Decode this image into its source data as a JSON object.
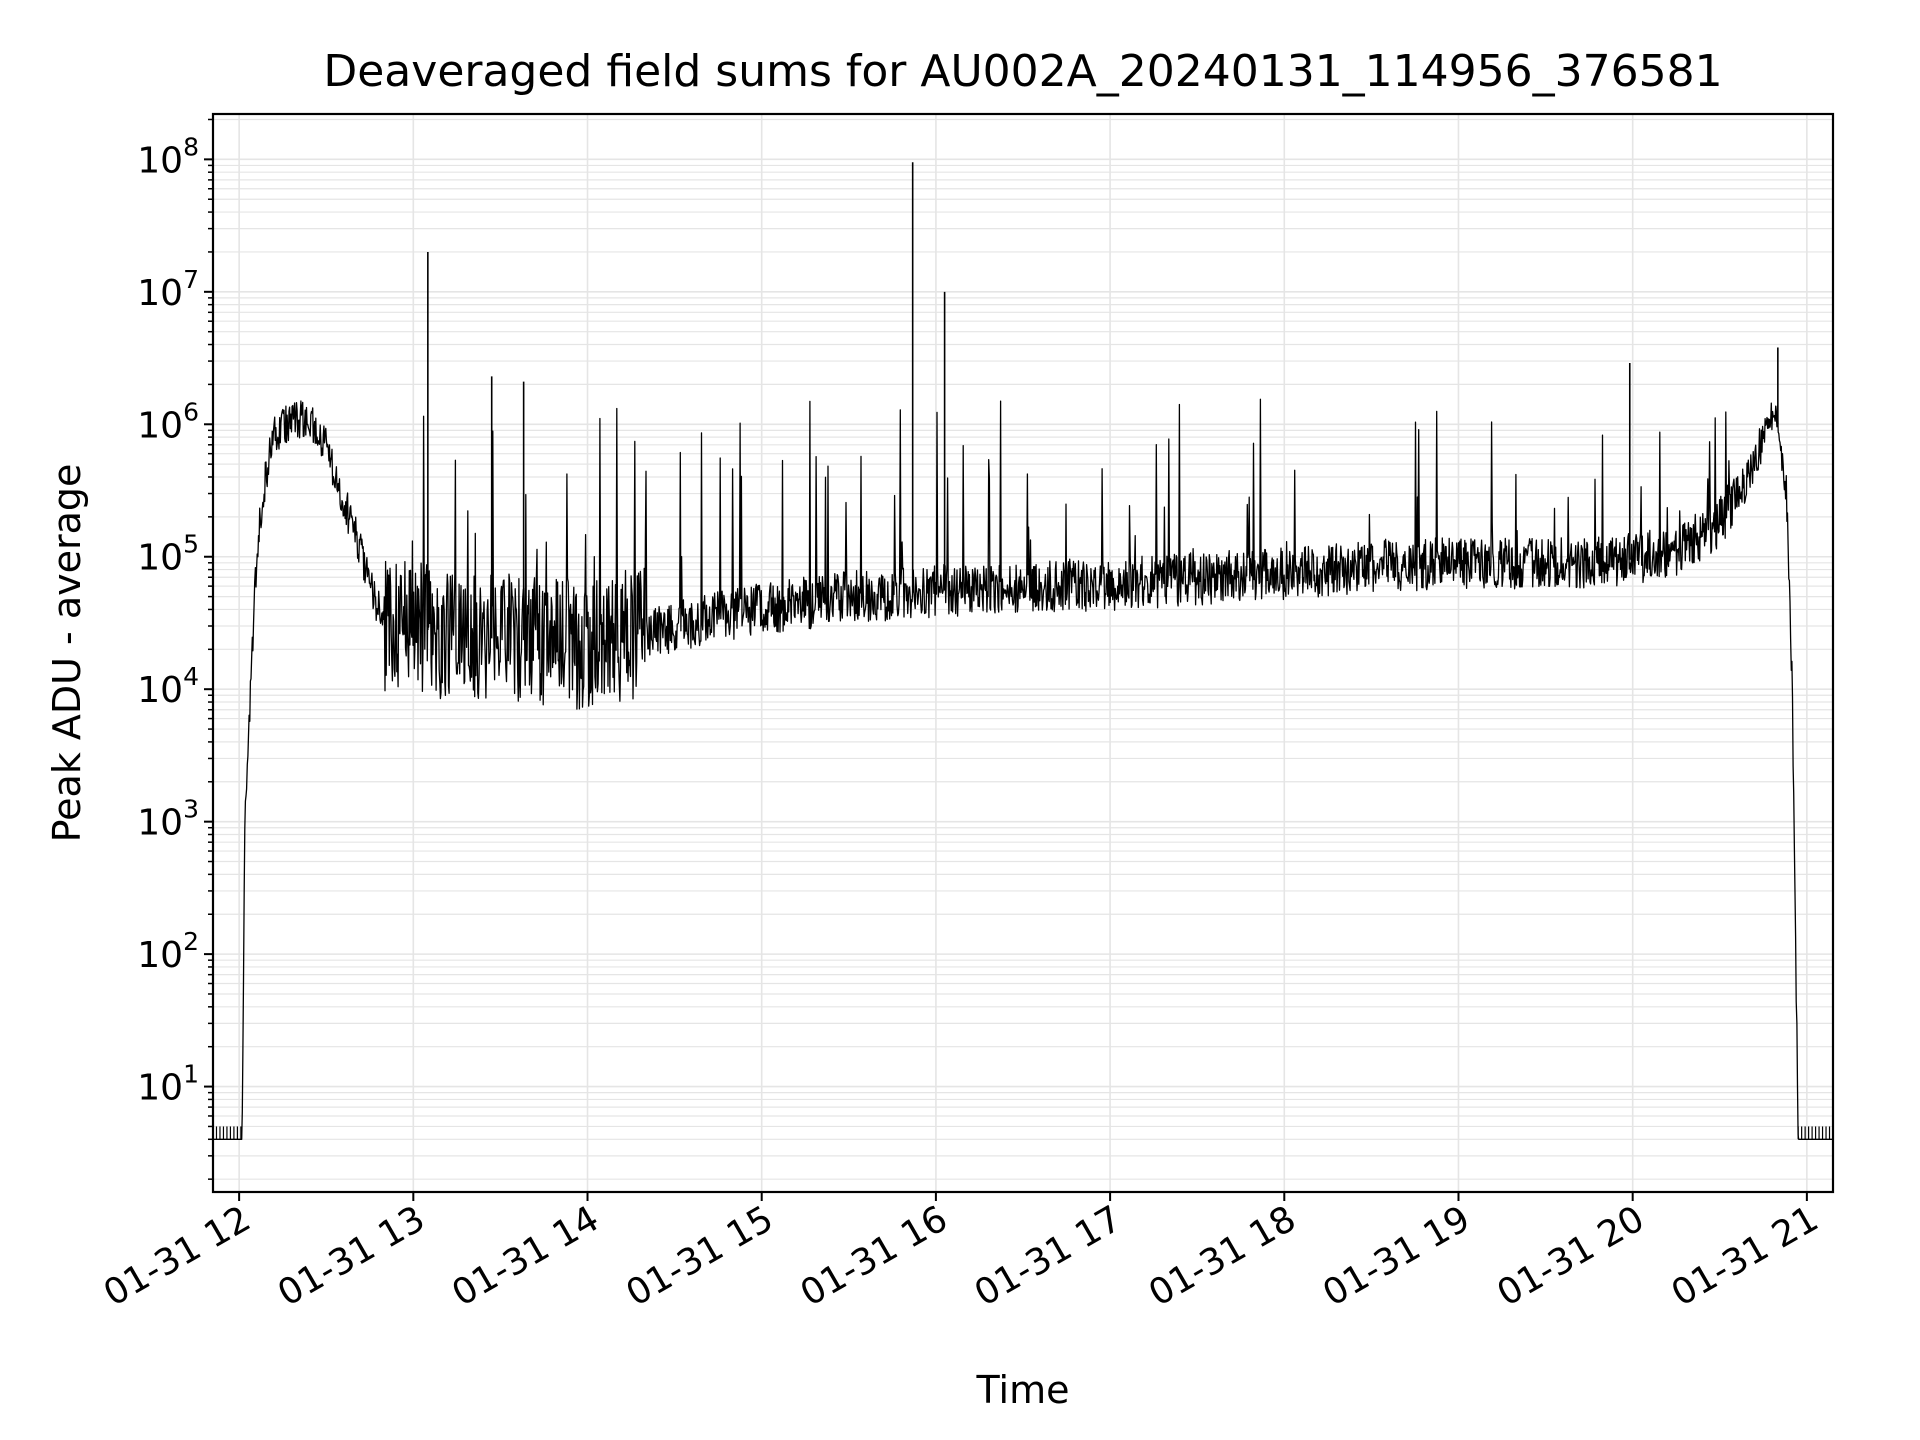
{
  "chart_data": {
    "type": "line",
    "title": "Deaveraged field sums for AU002A_20240131_114956_376581",
    "xlabel": "Time",
    "ylabel": "Peak ADU - average",
    "yscale": "log",
    "ylim": [
      1.6,
      220000000.0
    ],
    "xlim": [
      "2024-01-31 11:51",
      "2024-01-31 21:09"
    ],
    "grid": true,
    "line_color": "#000000",
    "grid_color": "#e5e5e5",
    "x_ticks": [
      {
        "label": "01-31 12",
        "time": "2024-01-31 12:00"
      },
      {
        "label": "01-31 13",
        "time": "2024-01-31 13:00"
      },
      {
        "label": "01-31 14",
        "time": "2024-01-31 14:00"
      },
      {
        "label": "01-31 15",
        "time": "2024-01-31 15:00"
      },
      {
        "label": "01-31 16",
        "time": "2024-01-31 16:00"
      },
      {
        "label": "01-31 17",
        "time": "2024-01-31 17:00"
      },
      {
        "label": "01-31 18",
        "time": "2024-01-31 18:00"
      },
      {
        "label": "01-31 19",
        "time": "2024-01-31 19:00"
      },
      {
        "label": "01-31 20",
        "time": "2024-01-31 20:00"
      },
      {
        "label": "01-31 21",
        "time": "2024-01-31 21:00"
      }
    ],
    "y_ticks": [
      {
        "base": "10",
        "exp": "1",
        "value": 10
      },
      {
        "base": "10",
        "exp": "2",
        "value": 100
      },
      {
        "base": "10",
        "exp": "3",
        "value": 1000
      },
      {
        "base": "10",
        "exp": "4",
        "value": 10000
      },
      {
        "base": "10",
        "exp": "5",
        "value": 100000
      },
      {
        "base": "10",
        "exp": "6",
        "value": 1000000
      },
      {
        "base": "10",
        "exp": "7",
        "value": 10000000
      },
      {
        "base": "10",
        "exp": "8",
        "value": 100000000
      }
    ],
    "series": [
      {
        "x": [
          "2024-01-31 11:51",
          "2024-01-31 12:01",
          "2024-01-31 12:02",
          "2024-01-31 12:04",
          "2024-01-31 12:06",
          "2024-01-31 12:09",
          "2024-01-31 12:12",
          "2024-01-31 12:15",
          "2024-01-31 12:20",
          "2024-01-31 12:25",
          "2024-01-31 12:30",
          "2024-01-31 12:35",
          "2024-01-31 12:40",
          "2024-01-31 12:45",
          "2024-01-31 12:50",
          "2024-01-31 13:00",
          "2024-01-31 13:05",
          "2024-01-31 13:15",
          "2024-01-31 13:30",
          "2024-01-31 13:45",
          "2024-01-31 14:00",
          "2024-01-31 14:30",
          "2024-01-31 15:00",
          "2024-01-31 15:30",
          "2024-01-31 16:00",
          "2024-01-31 16:30",
          "2024-01-31 17:00",
          "2024-01-31 17:30",
          "2024-01-31 18:00",
          "2024-01-31 18:30",
          "2024-01-31 19:00",
          "2024-01-31 19:30",
          "2024-01-31 20:00",
          "2024-01-31 20:15",
          "2024-01-31 20:30",
          "2024-01-31 20:40",
          "2024-01-31 20:46",
          "2024-01-31 20:50",
          "2024-01-31 20:53",
          "2024-01-31 20:55",
          "2024-01-31 20:57",
          "2024-01-31 21:09"
        ],
        "y": [
          4,
          4,
          1000,
          10000,
          100000,
          400000,
          800000,
          1000000,
          1100000,
          1000000,
          700000,
          300000,
          150000,
          60000,
          30000,
          30000,
          28000,
          25000,
          24000,
          23000,
          22000,
          30000,
          40000,
          50000,
          55000,
          60000,
          62000,
          68000,
          75000,
          85000,
          90000,
          90000,
          95000,
          110000,
          180000,
          400000,
          900000,
          1000000,
          300000,
          10000,
          4,
          4
        ]
      }
    ],
    "spikes": [
      {
        "x": "2024-01-31 13:05",
        "y": 20000000
      },
      {
        "x": "2024-01-31 13:27",
        "y": 2300000
      },
      {
        "x": "2024-01-31 13:38",
        "y": 2100000
      },
      {
        "x": "2024-01-31 15:52",
        "y": 95000000
      },
      {
        "x": "2024-01-31 16:03",
        "y": 10000000
      },
      {
        "x": "2024-01-31 19:59",
        "y": 2900000
      },
      {
        "x": "2024-01-31 20:50",
        "y": 3800000
      }
    ]
  }
}
